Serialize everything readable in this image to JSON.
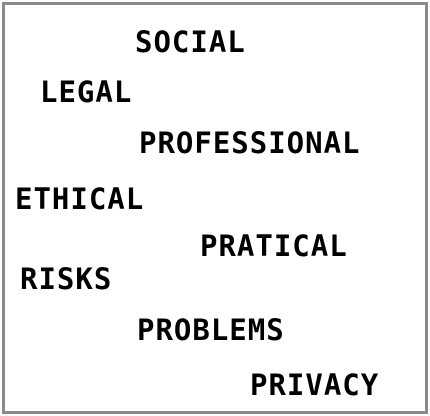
{
  "words": [
    "SOCIAL",
    "LEGAL",
    "PROFESSIONAL",
    "ETHICAL",
    "PRATICAL",
    "RISKS",
    "PROBLEMS",
    "PRIVACY"
  ],
  "colors": {
    "text": "#000000",
    "border": "#8a8a8a",
    "background": "#ffffff"
  }
}
